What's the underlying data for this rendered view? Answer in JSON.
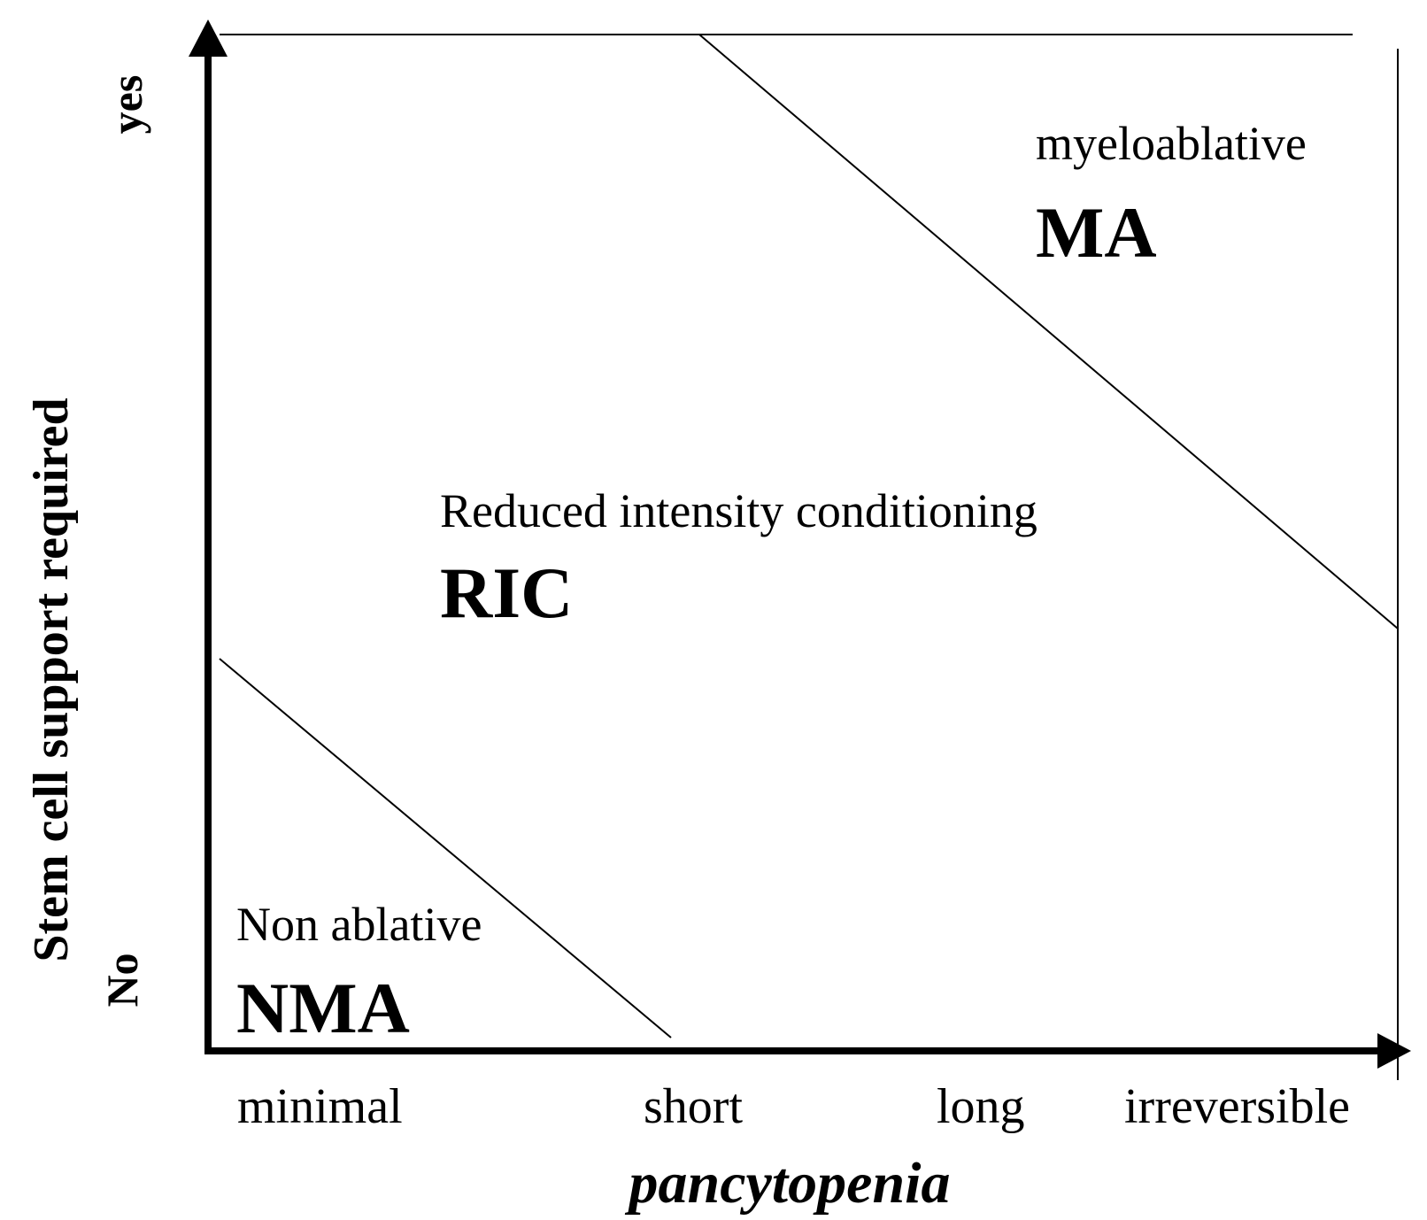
{
  "regions": {
    "ma": {
      "subtitle": "myeloablative",
      "abbr": "MA"
    },
    "ric": {
      "subtitle": "Reduced intensity conditioning",
      "abbr": "RIC"
    },
    "nma": {
      "subtitle": "Non ablative",
      "abbr": "NMA"
    }
  },
  "x_axis": {
    "title": "pancytopenia",
    "ticks": [
      "minimal",
      "short",
      "long",
      "irreversible"
    ]
  },
  "y_axis": {
    "title": "Stem cell support required",
    "ticks": {
      "top": "yes",
      "bottom": "No"
    }
  },
  "colors": {
    "ink": "#000000",
    "background": "#ffffff"
  }
}
